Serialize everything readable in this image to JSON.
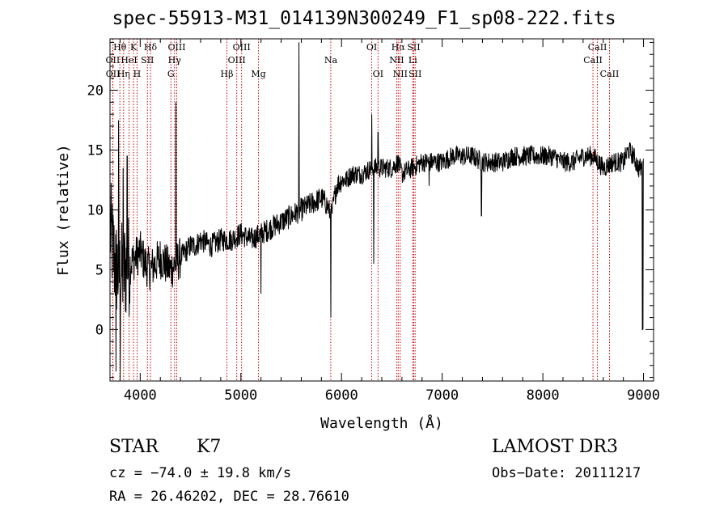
{
  "chart_data": {
    "type": "line",
    "title": "spec-55913-M31_014139N300249_F1_sp08-222.fits",
    "xlabel": "Wavelength (Å)",
    "ylabel": "Flux (relative)",
    "xlim": [
      3700,
      9100
    ],
    "ylim": [
      -4.3,
      24.3
    ],
    "x_ticks": [
      4000,
      5000,
      6000,
      7000,
      8000,
      9000
    ],
    "x_tick_labels": [
      "4000",
      "5000",
      "6000",
      "7000",
      "8000",
      "9000"
    ],
    "y_ticks": [
      0,
      5,
      10,
      15,
      20
    ],
    "y_tick_labels": [
      "0",
      "5",
      "10",
      "15",
      "20"
    ],
    "series": [
      {
        "name": "flux",
        "x": [
          3700,
          3750,
          3800,
          3850,
          3900,
          3950,
          4000,
          4050,
          4100,
          4150,
          4200,
          4250,
          4300,
          4350,
          4400,
          4450,
          4500,
          4550,
          4600,
          4700,
          4800,
          4900,
          5000,
          5100,
          5200,
          5300,
          5400,
          5500,
          5600,
          5700,
          5800,
          5850,
          5900,
          5950,
          6000,
          6050,
          6100,
          6200,
          6300,
          6400,
          6500,
          6560,
          6600,
          6700,
          6800,
          6900,
          7000,
          7100,
          7200,
          7300,
          7400,
          7500,
          7600,
          7700,
          7800,
          7900,
          8000,
          8100,
          8200,
          8300,
          8400,
          8500,
          8600,
          8700,
          8800,
          8850,
          8900,
          8950,
          9000
        ],
        "values": [
          8.5,
          5.5,
          4.5,
          5.0,
          5.5,
          6.0,
          6.5,
          5.5,
          5.0,
          5.5,
          6.0,
          5.5,
          5.0,
          5.5,
          6.0,
          6.5,
          7.0,
          7.0,
          7.5,
          7.0,
          7.5,
          7.5,
          8.0,
          7.5,
          8.0,
          8.5,
          9.0,
          9.5,
          10.0,
          10.5,
          11.0,
          10.5,
          9.5,
          12.0,
          12.5,
          12.5,
          13.0,
          13.0,
          13.5,
          13.5,
          13.5,
          14.0,
          13.0,
          13.5,
          14.0,
          14.0,
          14.0,
          14.5,
          14.5,
          14.5,
          14.0,
          14.0,
          14.0,
          14.5,
          14.5,
          14.5,
          14.5,
          14.5,
          14.0,
          14.0,
          14.5,
          14.5,
          13.5,
          14.0,
          14.0,
          15.0,
          14.5,
          13.5,
          13.5
        ],
        "features": [
          {
            "x": 3760,
            "y": -3.5
          },
          {
            "x": 3785,
            "y": 17.5
          },
          {
            "x": 3800,
            "y": -4.0
          },
          {
            "x": 3830,
            "y": 13.5
          },
          {
            "x": 3870,
            "y": 14.5
          },
          {
            "x": 4355,
            "y": 19.0
          },
          {
            "x": 5200,
            "y": 3.0
          },
          {
            "x": 5577,
            "y": 24.0
          },
          {
            "x": 5893,
            "y": 1.0
          },
          {
            "x": 6300,
            "y": 18.0
          },
          {
            "x": 6320,
            "y": 5.5
          },
          {
            "x": 6363,
            "y": 16.5
          },
          {
            "x": 6870,
            "y": 12.0
          },
          {
            "x": 7390,
            "y": 9.5
          },
          {
            "x": 8990,
            "y": 0.0
          }
        ]
      }
    ],
    "line_markers": [
      {
        "label": "OII",
        "x": 3727,
        "row": 2
      },
      {
        "label": "OII",
        "x": 3729,
        "row": 3
      },
      {
        "label": "Hθ",
        "x": 3798,
        "row": 1
      },
      {
        "label": "Hη",
        "x": 3835,
        "row": 3
      },
      {
        "label": "HeI",
        "x": 3889,
        "row": 2
      },
      {
        "label": "K",
        "x": 3934,
        "row": 1
      },
      {
        "label": "H",
        "x": 3969,
        "row": 3
      },
      {
        "label": "SII",
        "x": 4072,
        "row": 2
      },
      {
        "label": "Hδ",
        "x": 4102,
        "row": 1
      },
      {
        "label": "OIII",
        "x": 4363,
        "row": 1
      },
      {
        "label": "Hγ",
        "x": 4341,
        "row": 2
      },
      {
        "label": "G",
        "x": 4305,
        "row": 3
      },
      {
        "label": "Hβ",
        "x": 4861,
        "row": 3
      },
      {
        "label": "OIII",
        "x": 5007,
        "row": 1
      },
      {
        "label": "OIII",
        "x": 4959,
        "row": 2
      },
      {
        "label": "Mg",
        "x": 5175,
        "row": 3
      },
      {
        "label": "Na",
        "x": 5893,
        "row": 2
      },
      {
        "label": "OI",
        "x": 6300,
        "row": 1
      },
      {
        "label": "OI",
        "x": 6363,
        "row": 3
      },
      {
        "label": "Hα",
        "x": 6563,
        "row": 1
      },
      {
        "label": "NII",
        "x": 6548,
        "row": 2
      },
      {
        "label": "NII",
        "x": 6583,
        "row": 3
      },
      {
        "label": "SII",
        "x": 6717,
        "row": 1
      },
      {
        "label": "Li",
        "x": 6708,
        "row": 2
      },
      {
        "label": "SII",
        "x": 6731,
        "row": 3
      },
      {
        "label": "CaII",
        "x": 8542,
        "row": 1
      },
      {
        "label": "CaII",
        "x": 8498,
        "row": 2
      },
      {
        "label": "CaII",
        "x": 8662,
        "row": 3
      }
    ],
    "colors": {
      "spectrum": "#000000",
      "markers": "#cc0000",
      "axes": "#000000"
    }
  },
  "info": {
    "class": "STAR",
    "subclass": "K7",
    "survey": "LAMOST DR3",
    "cz": "cz = −74.0 ± 19.8 km/s",
    "obs_date": "Obs−Date: 20111217",
    "radec": "RA =  26.46202, DEC =  28.76610"
  }
}
